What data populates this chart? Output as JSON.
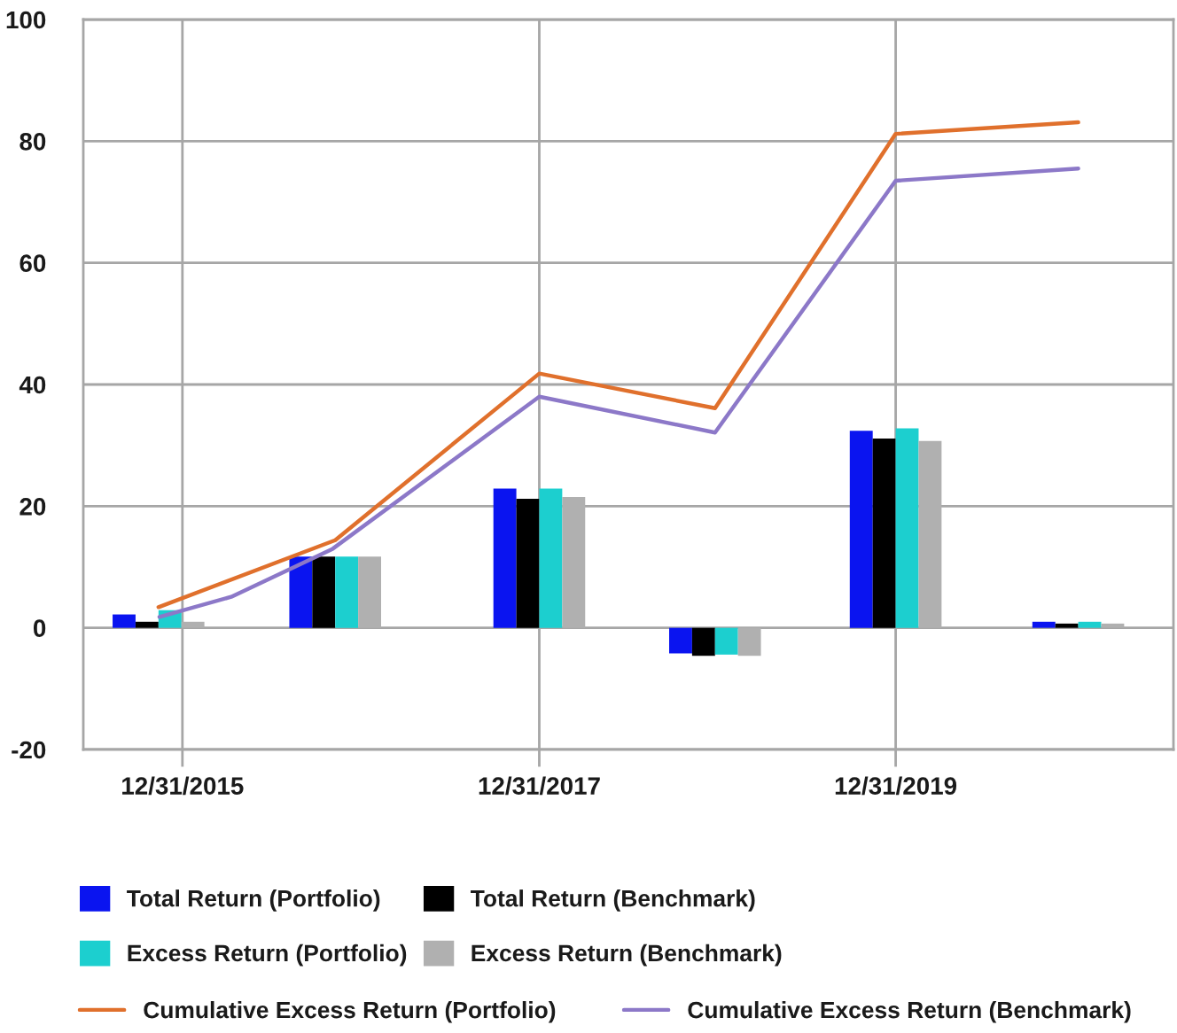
{
  "chart_data": {
    "type": "bar",
    "x": [
      "2015-11-12",
      "2016-11-08",
      "2017-12-31",
      "2018-12-26",
      "2019-12-31",
      "2021-01-08"
    ],
    "series": [
      {
        "name": "Total Return (Portfolio)",
        "color": "#0a14f0",
        "values": [
          2.2,
          11.7,
          22.9,
          -4.2,
          32.4,
          1.0
        ]
      },
      {
        "name": "Total Return (Benchmark)",
        "color": "#000000",
        "values": [
          1.0,
          11.7,
          21.2,
          -4.6,
          31.1,
          0.7
        ]
      },
      {
        "name": "Excess Return (Portfolio)",
        "color": "#1ccfcf",
        "values": [
          2.9,
          11.7,
          22.9,
          -4.4,
          32.8,
          1.0
        ]
      },
      {
        "name": "Excess Return (Benchmark)",
        "color": "#b0b0b0",
        "values": [
          1.0,
          11.7,
          21.5,
          -4.6,
          30.7,
          0.7
        ]
      },
      {
        "name": "Cumulative Excess Return (Portfolio)",
        "type": "line",
        "color": "#e0702c",
        "values": [
          3.4,
          14.4,
          41.8,
          36.1,
          81.2,
          83.1
        ]
      },
      {
        "name": "Cumulative Excess Return (Benchmark)",
        "type": "line",
        "color": "#8c78c8",
        "x": [
          "2015-11-14",
          "2016-04-09",
          "2016-11-03",
          "2017-12-31",
          "2018-12-26",
          "2019-12-31",
          "2021-01-08"
        ],
        "values": [
          1.8,
          5.1,
          13.0,
          38.0,
          32.1,
          73.5,
          75.5
        ]
      }
    ],
    "xlim": [
      "2015-06-11",
      "2021-07-22"
    ],
    "xticks": [
      {
        "value": "2015-12-31",
        "label": "12/31/2015"
      },
      {
        "value": "2017-12-31",
        "label": "12/31/2017"
      },
      {
        "value": "2019-12-31",
        "label": "12/31/2019"
      }
    ],
    "ylim": [
      -20,
      100
    ],
    "yticks": [
      -20,
      0,
      20,
      40,
      60,
      80,
      100
    ],
    "grid": true,
    "legend": "bottom"
  }
}
